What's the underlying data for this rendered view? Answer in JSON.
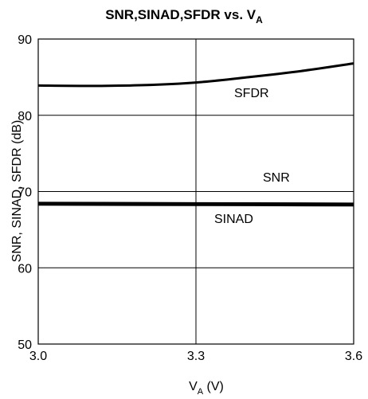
{
  "chart_data": {
    "type": "line",
    "title": {
      "main": "SNR,SINAD,SFDR vs. V",
      "subscript": "A"
    },
    "xlabel": {
      "main": "V",
      "subscript": "A",
      "suffix": " (V)"
    },
    "ylabel": "SNR, SINAD, SFDR (dB)",
    "xlim": [
      3.0,
      3.6
    ],
    "ylim": [
      50,
      90
    ],
    "x_ticks": [
      3.0,
      3.3,
      3.6
    ],
    "x_tick_labels": [
      "3.0",
      "3.3",
      "3.6"
    ],
    "y_ticks": [
      50,
      60,
      70,
      80,
      90
    ],
    "y_tick_labels": [
      "50",
      "60",
      "70",
      "80",
      "90"
    ],
    "grid": true,
    "series": [
      {
        "name": "SFDR",
        "x": [
          3.0,
          3.1,
          3.2,
          3.3,
          3.4,
          3.5,
          3.6
        ],
        "y": [
          83.9,
          83.85,
          83.95,
          84.3,
          85.0,
          85.8,
          86.8
        ]
      },
      {
        "name": "SNR",
        "x": [
          3.0,
          3.3,
          3.6
        ],
        "y": [
          68.5,
          68.45,
          68.4
        ]
      },
      {
        "name": "SINAD",
        "x": [
          3.0,
          3.3,
          3.6
        ],
        "y": [
          68.3,
          68.25,
          68.2
        ]
      }
    ]
  }
}
